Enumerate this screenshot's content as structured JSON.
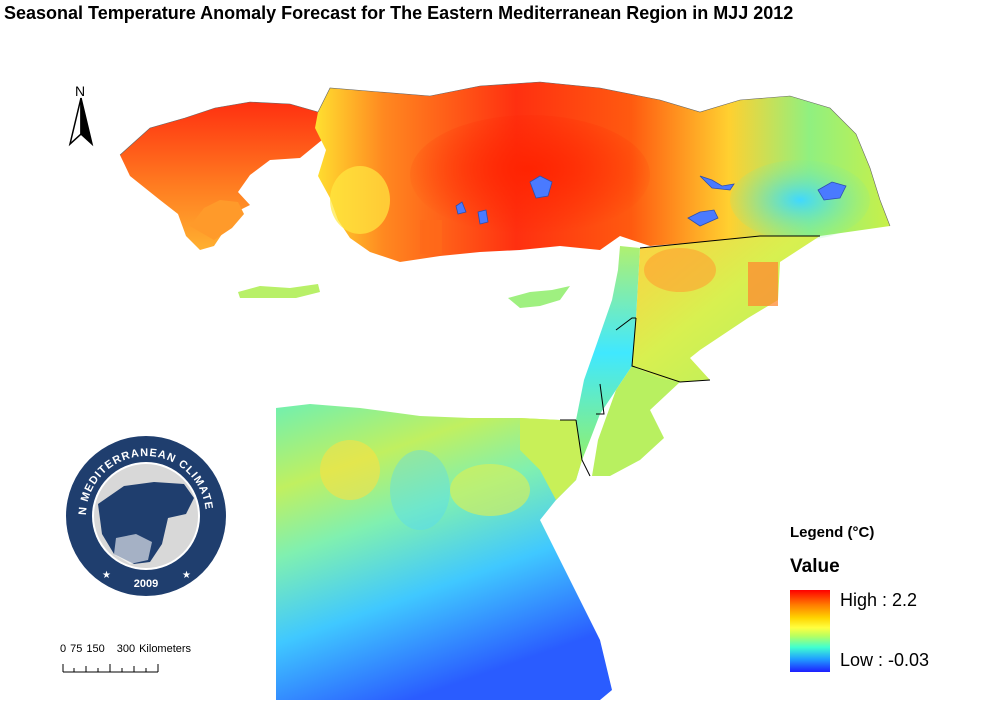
{
  "title": "Seasonal Temperature Anomaly Forecast for The Eastern Mediterranean Region in MJJ 2012",
  "north_arrow": {
    "letter": "N",
    "icon": "north-arrow-icon"
  },
  "logo": {
    "icon": "emcc-logo-icon",
    "ring_text": "EASTERN MEDITERRANEAN CLIMATE CENTRE",
    "year": "2009"
  },
  "scale_bar": {
    "labels": [
      "0",
      "75",
      "150",
      "300"
    ],
    "unit": "Kilometers"
  },
  "legend": {
    "heading": "Legend (°C)",
    "field": "Value",
    "high_label": "High : 2.2",
    "low_label": "Low : -0.03",
    "ramp_colors": [
      "#ff0000",
      "#ff7b00",
      "#ffd400",
      "#ffff40",
      "#b8ff60",
      "#40ffd0",
      "#20a0ff",
      "#1e1eff"
    ]
  },
  "colors": {
    "high": "#ff2a10",
    "orange": "#ff8a1a",
    "yellow": "#ffe830",
    "yellow_green": "#c8f050",
    "cyan": "#40e0d0",
    "blue": "#2a5cff",
    "water": "#4a7aff",
    "logo_navy": "#1f3e6e",
    "border": "#000000"
  }
}
